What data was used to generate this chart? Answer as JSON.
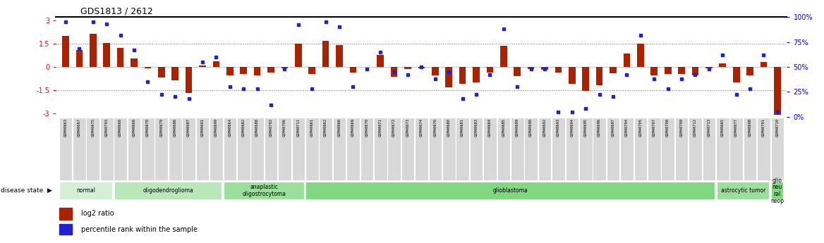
{
  "title": "GDS1813 / 2612",
  "samples": [
    "GSM40663",
    "GSM40667",
    "GSM40675",
    "GSM40703",
    "GSM40660",
    "GSM40668",
    "GSM40678",
    "GSM40679",
    "GSM40686",
    "GSM40687",
    "GSM40691",
    "GSM40699",
    "GSM40664",
    "GSM40682",
    "GSM40688",
    "GSM40702",
    "GSM40706",
    "GSM40711",
    "GSM40661",
    "GSM40662",
    "GSM40666",
    "GSM40669",
    "GSM40670",
    "GSM40671",
    "GSM40672",
    "GSM40673",
    "GSM40674",
    "GSM40676",
    "GSM40680",
    "GSM40681",
    "GSM40683",
    "GSM40684",
    "GSM40685",
    "GSM40689",
    "GSM40690",
    "GSM40692",
    "GSM40693",
    "GSM40694",
    "GSM40695",
    "GSM40696",
    "GSM40697",
    "GSM40704",
    "GSM40705",
    "GSM40707",
    "GSM40708",
    "GSM40709",
    "GSM40712",
    "GSM40713",
    "GSM40665",
    "GSM40677",
    "GSM40698",
    "GSM40701",
    "GSM40710"
  ],
  "log2_ratio": [
    2.0,
    1.1,
    2.1,
    1.55,
    1.2,
    0.55,
    -0.1,
    -0.7,
    -0.85,
    -1.7,
    0.1,
    0.35,
    -0.55,
    -0.45,
    -0.55,
    -0.35,
    -0.1,
    1.5,
    -0.45,
    1.65,
    1.4,
    -0.35,
    0.0,
    0.75,
    -0.65,
    -0.15,
    -0.1,
    -0.55,
    -1.3,
    -1.1,
    -1.0,
    -0.35,
    1.35,
    -0.6,
    -0.15,
    -0.2,
    -0.35,
    -1.1,
    -1.55,
    -1.2,
    -0.4,
    0.85,
    1.5,
    -0.55,
    -0.45,
    -0.45,
    -0.55,
    -0.1,
    0.2,
    -1.0,
    -0.55,
    0.3,
    -3.1
  ],
  "percentile": [
    95,
    68,
    95,
    93,
    82,
    67,
    35,
    22,
    20,
    18,
    55,
    60,
    30,
    28,
    28,
    12,
    48,
    92,
    28,
    95,
    90,
    30,
    48,
    65,
    45,
    42,
    50,
    38,
    45,
    18,
    22,
    42,
    88,
    30,
    48,
    48,
    5,
    5,
    8,
    22,
    20,
    42,
    82,
    38,
    28,
    38,
    42,
    48,
    62,
    22,
    28,
    62,
    5
  ],
  "disease_groups": [
    {
      "label": "normal",
      "start": 0,
      "end": 4,
      "color": "#d4f0d4"
    },
    {
      "label": "oligodendroglioma",
      "start": 4,
      "end": 12,
      "color": "#b8e8b8"
    },
    {
      "label": "anaplastic\noligostrocytoma",
      "start": 12,
      "end": 18,
      "color": "#9cdf9c"
    },
    {
      "label": "glioblastoma",
      "start": 18,
      "end": 48,
      "color": "#80d880"
    },
    {
      "label": "astrocytic tumor",
      "start": 48,
      "end": 52,
      "color": "#9cdf9c"
    },
    {
      "label": "glio\nneu\nral\nneop",
      "start": 52,
      "end": 53,
      "color": "#80d880"
    }
  ],
  "bar_color": "#aa2200",
  "dot_color": "#2222cc",
  "ylim": [
    -3.2,
    3.2
  ],
  "yticks_left": [
    -3,
    -1.5,
    0,
    1.5,
    3
  ],
  "yticks_right": [
    0,
    25,
    50,
    75,
    100
  ],
  "hlines_gray": [
    -1.5,
    1.5
  ],
  "hline_red": 0,
  "tick_label_gray": "#bbbbbb",
  "sample_bg_color": "#d8d8d8"
}
